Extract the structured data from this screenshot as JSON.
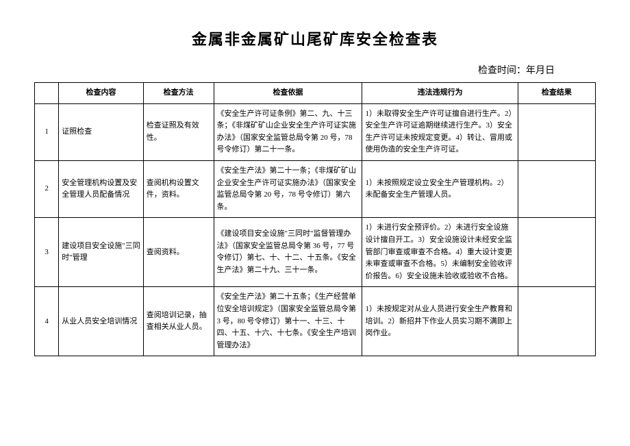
{
  "title": "金属非金属矿山尾矿库安全检查表",
  "check_time_label": "检查时间：年月日",
  "headers": {
    "num": "",
    "content": "检查内容",
    "method": "检查方法",
    "basis": "检查依据",
    "violation": "违法违规行为",
    "result": "检查结果"
  },
  "rows": [
    {
      "num": "1",
      "content": "证照检查",
      "method": "检查证照及有效性。",
      "basis": "《安全生产许可证条例》第二、九、十三条；《非煤矿矿山企业安全生产许可证实施办法》（国家安全监管总局令第 20 号，78 号令修订）第二十一条。",
      "violation": "1）未取得安全生产许可证擅自进行生产。2）安全生产许可证逾期继续进行生产。3）安全生产许可证未按规定变更。4）转让、冒用或使用伪造的安全生产许可证。",
      "result": ""
    },
    {
      "num": "2",
      "content": "安全管理机构设置及安全管理人员配备情况",
      "method": "查阅机构设置文件，资料。",
      "basis": "《安全生产法》第二十一条；《非煤矿矿山企业安全生产许可证实施办法》（国家安全监管总局令第 20 号，78 号令修订）第六条。",
      "violation": "1）未按照规定设立安全生产管理机构。2）未配备安全生产管理人员。",
      "result": ""
    },
    {
      "num": "3",
      "content": "建设项目安全设施\"三同时\"管理",
      "method": "查阅资料。",
      "basis": "《建设项目安全设施\"三同时\"监督管理办法》（国家安全监管总局令第 36 号，77 号令修订）第七、十、十二、十五条。《安全生产法》第二十九、三十一条。",
      "violation": "1）未进行安全预评价。2）未进行安全设施设计擅自开工。3）安全设施设计未经安全监管部门审查或审查不合格。4）重大设计变更未审查或审查不合格。5）未编制安全验收评价报告。6）安全设施未验收或验收不合格。",
      "result": ""
    },
    {
      "num": "4",
      "content": "从业人员安全培训情况",
      "method": "查阅培训记录，抽查相关从业人员。",
      "basis": "《安全生产法》第二十五条；《生产经营单位安全培训规定》（国家安全监管总局令第 3 号，80 号令修订）第十一、十三、十四、十五、十六、十七条。《安全生产培训管理办法》",
      "violation": "1）未按规定对从业人员进行安全生产教育和培训。2）新招井下作业人员实习期不满即上岗作业。",
      "result": ""
    }
  ]
}
